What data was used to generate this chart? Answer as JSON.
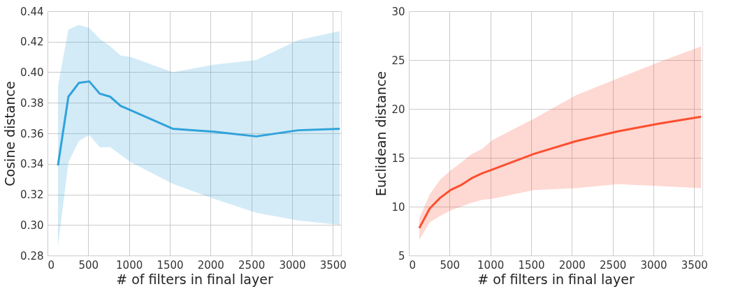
{
  "chart_data": [
    {
      "type": "line",
      "xlabel": "# of filters in final layer",
      "ylabel": "Cosine distance",
      "x": [
        128,
        256,
        384,
        512,
        640,
        768,
        896,
        1024,
        1536,
        2048,
        2560,
        3072,
        3584
      ],
      "series": [
        {
          "color": "#30a2da",
          "values": [
            0.339,
            0.384,
            0.393,
            0.394,
            0.386,
            0.384,
            0.378,
            0.375,
            0.363,
            0.361,
            0.358,
            0.362,
            0.363
          ],
          "lower": [
            0.286,
            0.341,
            0.355,
            0.359,
            0.351,
            0.351,
            0.346,
            0.341,
            0.327,
            0.317,
            0.308,
            0.303,
            0.3
          ],
          "upper": [
            0.391,
            0.428,
            0.431,
            0.429,
            0.422,
            0.417,
            0.411,
            0.41,
            0.4,
            0.405,
            0.408,
            0.421,
            0.427
          ]
        }
      ],
      "xlim": [
        0,
        3600
      ],
      "xticks": [
        0,
        500,
        1000,
        1500,
        2000,
        2500,
        3000,
        3500
      ],
      "ylim": [
        0.28,
        0.44
      ],
      "yticks": [
        {
          "value": 0.28,
          "label": "0.28"
        },
        {
          "value": 0.3,
          "label": "0.30"
        },
        {
          "value": 0.32,
          "label": "0.32"
        },
        {
          "value": 0.34,
          "label": "0.34"
        },
        {
          "value": 0.36,
          "label": "0.36"
        },
        {
          "value": 0.38,
          "label": "0.38"
        },
        {
          "value": 0.4,
          "label": "0.40"
        },
        {
          "value": 0.42,
          "label": "0.42"
        },
        {
          "value": 0.44,
          "label": "0.44"
        }
      ],
      "grid": true,
      "marker": "none",
      "line_style": "solid"
    },
    {
      "type": "line",
      "xlabel": "# of filters in final layer",
      "ylabel": "Euclidean distance",
      "x": [
        128,
        256,
        384,
        512,
        640,
        768,
        896,
        1024,
        1536,
        2048,
        2560,
        3072,
        3584
      ],
      "series": [
        {
          "color": "#fc4f30",
          "values": [
            7.8,
            9.8,
            10.9,
            11.7,
            12.2,
            12.9,
            13.4,
            13.8,
            15.4,
            16.7,
            17.7,
            18.5,
            19.2
          ],
          "lower": [
            6.6,
            8.4,
            9.05,
            9.6,
            10.0,
            10.4,
            10.7,
            10.8,
            11.7,
            11.9,
            12.3,
            12.1,
            11.9
          ],
          "upper": [
            8.8,
            11.25,
            12.75,
            13.7,
            14.5,
            15.35,
            15.9,
            16.8,
            19.0,
            21.4,
            23.1,
            24.8,
            26.4
          ]
        }
      ],
      "xlim": [
        0,
        3600
      ],
      "xticks": [
        0,
        500,
        1000,
        1500,
        2000,
        2500,
        3000,
        3500
      ],
      "ylim": [
        5,
        30
      ],
      "yticks": [
        5,
        10,
        15,
        20,
        25,
        30
      ],
      "grid": true,
      "marker": "none",
      "line_style": "solid"
    }
  ]
}
